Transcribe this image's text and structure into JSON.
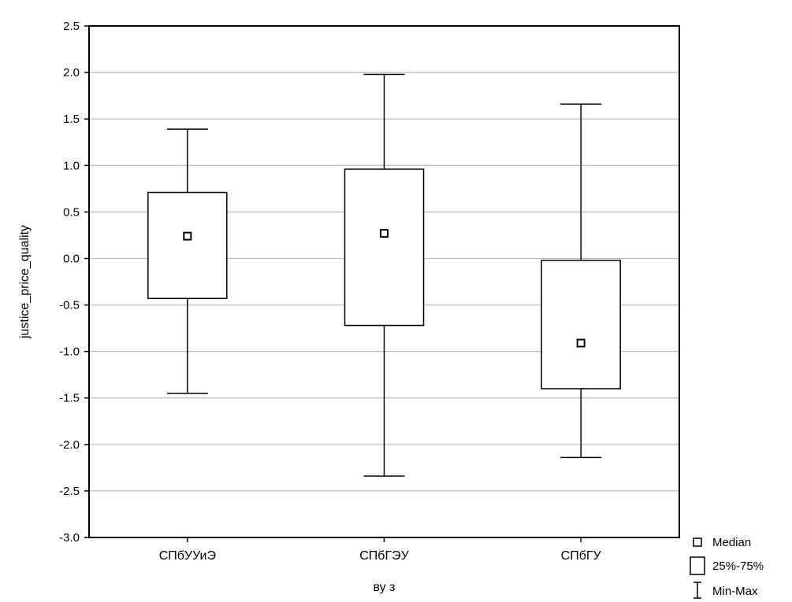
{
  "chart_data": {
    "type": "boxplot",
    "title": "",
    "xlabel": "ву з",
    "ylabel": "justice_price_quality",
    "ylim": [
      -3.0,
      2.5
    ],
    "yticks": [
      2.5,
      2.0,
      1.5,
      1.0,
      0.5,
      0.0,
      -0.5,
      -1.0,
      -1.5,
      -2.0,
      -2.5,
      -3.0
    ],
    "ytick_labels": [
      "2.5",
      "2.0",
      "1.5",
      "1.0",
      "0.5",
      "0.0",
      "-0.5",
      "-1.0",
      "-1.5",
      "-2.0",
      "-2.5",
      "-3.0"
    ],
    "grid": true,
    "legend_position": "bottom-right outside plot",
    "legend": [
      {
        "symbol": "median",
        "label": "Median"
      },
      {
        "symbol": "box",
        "label": "25%-75%"
      },
      {
        "symbol": "whisker",
        "label": "Min-Max"
      }
    ],
    "categories": [
      "СПбУУиЭ",
      "СПбГЭУ",
      "СПбГУ"
    ],
    "boxes": [
      {
        "category": "СПбУУиЭ",
        "min": -1.45,
        "q1": -0.43,
        "median": 0.24,
        "q3": 0.71,
        "max": 1.39
      },
      {
        "category": "СПбГЭУ",
        "min": -2.34,
        "q1": -0.72,
        "median": 0.27,
        "q3": 0.96,
        "max": 1.98
      },
      {
        "category": "СПбГУ",
        "min": -2.14,
        "q1": -1.4,
        "median": -0.91,
        "q3": -0.02,
        "max": 1.66
      }
    ]
  }
}
